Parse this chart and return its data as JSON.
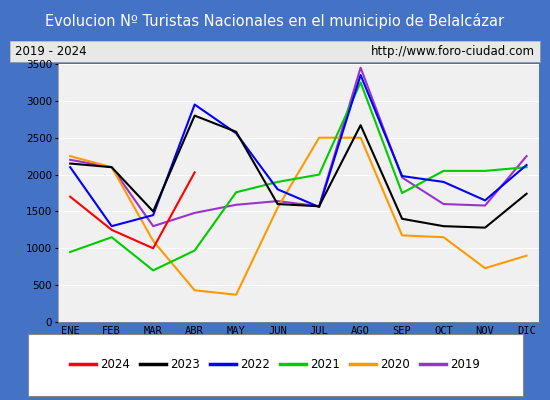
{
  "title": "Evolucion Nº Turistas Nacionales en el municipio de Belalcázar",
  "subtitle_left": "2019 - 2024",
  "subtitle_right": "http://www.foro-ciudad.com",
  "x_labels": [
    "ENE",
    "FEB",
    "MAR",
    "ABR",
    "MAY",
    "JUN",
    "JUL",
    "AGO",
    "SEP",
    "OCT",
    "NOV",
    "DIC"
  ],
  "ylim": [
    0,
    3500
  ],
  "yticks": [
    0,
    500,
    1000,
    1500,
    2000,
    2500,
    3000,
    3500
  ],
  "series": {
    "2024": {
      "color": "#ff0000",
      "values": [
        1700,
        1250,
        1000,
        2030,
        null,
        null,
        null,
        null,
        null,
        null,
        null,
        null
      ]
    },
    "2023": {
      "color": "#000000",
      "values": [
        2150,
        2100,
        1500,
        2800,
        2580,
        1600,
        1570,
        2670,
        1400,
        1300,
        1280,
        1740
      ]
    },
    "2022": {
      "color": "#0000ff",
      "values": [
        2100,
        1300,
        1450,
        2950,
        2560,
        1800,
        1560,
        3350,
        1980,
        1900,
        1650,
        2130
      ]
    },
    "2021": {
      "color": "#00cc00",
      "values": [
        950,
        1150,
        700,
        970,
        1760,
        1900,
        2000,
        3250,
        1750,
        2050,
        2050,
        2100
      ]
    },
    "2020": {
      "color": "#ff9900",
      "values": [
        2250,
        2100,
        1100,
        430,
        370,
        1550,
        2500,
        2500,
        1175,
        1150,
        730,
        900
      ]
    },
    "2019": {
      "color": "#9933cc",
      "values": [
        2200,
        2100,
        1300,
        1480,
        1590,
        1640,
        1570,
        3450,
        1960,
        1600,
        1580,
        2250
      ]
    }
  },
  "title_bg_color": "#4472c4",
  "title_text_color": "#ffffff",
  "subtitle_bg_color": "#e8e8e8",
  "plot_bg_color": "#f0f0f0",
  "border_color": "#4472c4",
  "grid_color": "#ffffff",
  "title_fontsize": 10.5,
  "subtitle_fontsize": 8.5,
  "tick_fontsize": 7.5,
  "legend_fontsize": 8.5,
  "line_width": 1.5
}
